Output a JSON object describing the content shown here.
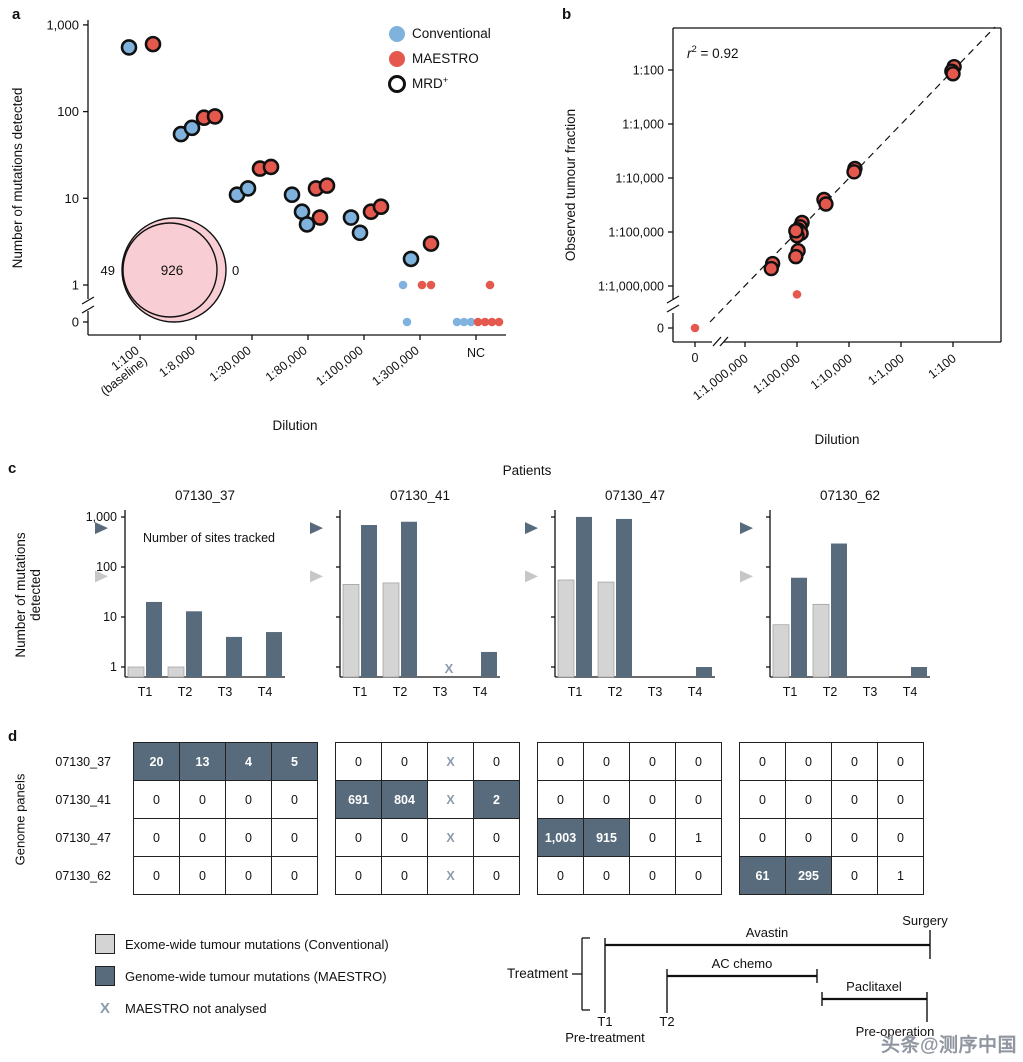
{
  "panel_labels": {
    "a": "a",
    "b": "b",
    "c": "c",
    "d": "d"
  },
  "watermark": "头条@测序中国",
  "colors": {
    "conventional": "#7fb2dd",
    "maestro": "#e4584e",
    "ring": "#111111",
    "bar_light": "#d4d4d4",
    "bar_dark": "#576b7c",
    "venn_fill": "#f8cdd3",
    "x_mark": "#8b9bab",
    "axis": "#111111"
  },
  "chart_data": [
    {
      "id": "a",
      "type": "scatter",
      "xlabel": "Dilution",
      "ylabel": "Number of mutations detected",
      "yscale": "log-with-zero-break",
      "ylim": [
        0,
        1000
      ],
      "yticks": [
        1000,
        100,
        10,
        1,
        0
      ],
      "ytick_labels": [
        "1,000",
        "100",
        "10",
        "1",
        "0"
      ],
      "categories": [
        {
          "lines": [
            "1:100",
            "(baseline)"
          ]
        },
        {
          "lines": [
            "1:8,000"
          ]
        },
        {
          "lines": [
            "1:30,000"
          ]
        },
        {
          "lines": [
            "1:80,000"
          ]
        },
        {
          "lines": [
            "1:100,000"
          ]
        },
        {
          "lines": [
            "1:300,000"
          ]
        },
        {
          "lines": [
            "NC"
          ],
          "horizontal": true
        }
      ],
      "legend": [
        {
          "key": "conventional",
          "label": "Conventional"
        },
        {
          "key": "maestro",
          "label": "MAESTRO"
        },
        {
          "key": "mrd",
          "label": "MRD",
          "sup": "+"
        }
      ],
      "venn": {
        "left_value": "49",
        "overlap_value": "926",
        "right_value": "0"
      },
      "points": [
        {
          "cat": 0,
          "series": "conventional",
          "value": 550,
          "mrd": true,
          "dx": -11
        },
        {
          "cat": 0,
          "series": "maestro",
          "value": 600,
          "mrd": true,
          "dx": 13
        },
        {
          "cat": 1,
          "series": "conventional",
          "value": 55,
          "mrd": true,
          "dx": -15
        },
        {
          "cat": 1,
          "series": "conventional",
          "value": 65,
          "mrd": true,
          "dx": -4
        },
        {
          "cat": 1,
          "series": "maestro",
          "value": 85,
          "mrd": true,
          "dx": 8
        },
        {
          "cat": 1,
          "series": "maestro",
          "value": 88,
          "mrd": true,
          "dx": 19
        },
        {
          "cat": 2,
          "series": "conventional",
          "value": 11,
          "mrd": true,
          "dx": -15
        },
        {
          "cat": 2,
          "series": "conventional",
          "value": 13,
          "mrd": true,
          "dx": -4
        },
        {
          "cat": 2,
          "series": "maestro",
          "value": 22,
          "mrd": true,
          "dx": 8
        },
        {
          "cat": 2,
          "series": "maestro",
          "value": 23,
          "mrd": true,
          "dx": 19
        },
        {
          "cat": 3,
          "series": "conventional",
          "value": 11,
          "mrd": true,
          "dx": -16
        },
        {
          "cat": 3,
          "series": "conventional",
          "value": 7,
          "mrd": true,
          "dx": -6
        },
        {
          "cat": 3,
          "series": "conventional",
          "value": 5,
          "mrd": true,
          "dx": -1
        },
        {
          "cat": 3,
          "series": "maestro",
          "value": 13,
          "mrd": true,
          "dx": 8
        },
        {
          "cat": 3,
          "series": "maestro",
          "value": 14,
          "mrd": true,
          "dx": 19
        },
        {
          "cat": 3,
          "series": "maestro",
          "value": 6,
          "mrd": true,
          "dx": 12
        },
        {
          "cat": 4,
          "series": "conventional",
          "value": 6,
          "mrd": true,
          "dx": -13
        },
        {
          "cat": 4,
          "series": "conventional",
          "value": 4,
          "mrd": true,
          "dx": -4
        },
        {
          "cat": 4,
          "series": "maestro",
          "value": 7,
          "mrd": true,
          "dx": 7
        },
        {
          "cat": 4,
          "series": "maestro",
          "value": 8,
          "mrd": true,
          "dx": 17
        },
        {
          "cat": 5,
          "series": "conventional",
          "value": 2,
          "mrd": true,
          "dx": -9
        },
        {
          "cat": 5,
          "series": "maestro",
          "value": 3,
          "mrd": true,
          "dx": 11
        },
        {
          "cat": 5,
          "series": "conventional",
          "value": 1,
          "mrd": false,
          "dx": -17
        },
        {
          "cat": 5,
          "series": "maestro",
          "value": 1,
          "mrd": false,
          "dx": 2
        },
        {
          "cat": 5,
          "series": "maestro",
          "value": 1,
          "mrd": false,
          "dx": 11
        },
        {
          "cat": 5,
          "series": "conventional",
          "value": 0,
          "mrd": false,
          "dx": -13
        },
        {
          "cat": 6,
          "series": "conventional",
          "value": 0,
          "mrd": false,
          "dx": -19
        },
        {
          "cat": 6,
          "series": "conventional",
          "value": 0,
          "mrd": false,
          "dx": -12
        },
        {
          "cat": 6,
          "series": "conventional",
          "value": 0,
          "mrd": false,
          "dx": -5
        },
        {
          "cat": 6,
          "series": "maestro",
          "value": 0,
          "mrd": false,
          "dx": 2
        },
        {
          "cat": 6,
          "series": "maestro",
          "value": 0,
          "mrd": false,
          "dx": 9
        },
        {
          "cat": 6,
          "series": "maestro",
          "value": 0,
          "mrd": false,
          "dx": 16
        },
        {
          "cat": 6,
          "series": "maestro",
          "value": 0,
          "mrd": false,
          "dx": 23
        },
        {
          "cat": 6,
          "series": "maestro",
          "value": 1,
          "mrd": false,
          "dx": 14
        }
      ]
    },
    {
      "id": "b",
      "type": "scatter",
      "xlabel": "Dilution",
      "ylabel": "Observed tumour fraction",
      "xscale": "log-with-zero-break",
      "yscale": "log-with-zero-break",
      "annotation": {
        "italic": "r",
        "sup": "2",
        "rest": " = 0.92"
      },
      "xtick_labels": [
        "0",
        "1:1,000,000",
        "1:100,000",
        "1:10,000",
        "1:1,000",
        "1:100"
      ],
      "ytick_labels": [
        "1:100",
        "1:1,000",
        "1:10,000",
        "1:100,000",
        "1:1,000,000",
        "0"
      ],
      "identity_line": true,
      "points": [
        {
          "x": 0.0105,
          "y": 0.0115,
          "mrd": true
        },
        {
          "x": 0.0095,
          "y": 0.0095,
          "mrd": true
        },
        {
          "x": 0.01,
          "y": 0.0085,
          "mrd": true
        },
        {
          "x": 0.00013,
          "y": 0.00015,
          "mrd": true
        },
        {
          "x": 0.000125,
          "y": 0.00013,
          "mrd": true
        },
        {
          "x": 3.3e-05,
          "y": 4e-05,
          "mrd": true
        },
        {
          "x": 3.6e-05,
          "y": 3.3e-05,
          "mrd": true
        },
        {
          "x": 1.25e-05,
          "y": 1.5e-05,
          "mrd": true
        },
        {
          "x": 1.15e-05,
          "y": 1.25e-05,
          "mrd": true
        },
        {
          "x": 1.05e-05,
          "y": 1.1e-05,
          "mrd": true
        },
        {
          "x": 1.2e-05,
          "y": 9.5e-06,
          "mrd": true
        },
        {
          "x": 1e-05,
          "y": 8.5e-06,
          "mrd": true
        },
        {
          "x": 9.5e-06,
          "y": 1.05e-05,
          "mrd": true
        },
        {
          "x": 1.05e-05,
          "y": 4.5e-06,
          "mrd": true
        },
        {
          "x": 9.5e-06,
          "y": 3.5e-06,
          "mrd": true
        },
        {
          "x": 3.4e-06,
          "y": 2.6e-06,
          "mrd": true
        },
        {
          "x": 3.2e-06,
          "y": 2.1e-06,
          "mrd": true
        },
        {
          "x": 1e-05,
          "y": 7e-07,
          "mrd": false
        },
        {
          "x": 0,
          "y": 0,
          "mrd": false
        }
      ]
    },
    {
      "id": "c",
      "type": "bar",
      "title": "Patients",
      "ylabel_lines": [
        "Number of mutations",
        "detected"
      ],
      "yscale": "log",
      "ylim": [
        1,
        1000
      ],
      "yticks": [
        "1,000",
        "100",
        "10",
        "1"
      ],
      "sites_note": "Number of sites tracked",
      "x_symbol": "X",
      "timepoints": [
        "T1",
        "T2",
        "T3",
        "T4"
      ],
      "sites_tracked": {
        "genome": 600,
        "exome": 65
      },
      "patients": [
        {
          "id": "07130_37",
          "conventional": [
            1,
            1,
            0,
            0
          ],
          "maestro": [
            20,
            13,
            4,
            5
          ],
          "not_analysed": []
        },
        {
          "id": "07130_41",
          "conventional": [
            45,
            48,
            0,
            0
          ],
          "maestro": [
            691,
            804,
            null,
            2
          ],
          "not_analysed": [
            2
          ]
        },
        {
          "id": "07130_47",
          "conventional": [
            55,
            50,
            0,
            0
          ],
          "maestro": [
            1003,
            915,
            0,
            1
          ],
          "not_analysed": []
        },
        {
          "id": "07130_62",
          "conventional": [
            7,
            18,
            0,
            0
          ],
          "maestro": [
            61,
            295,
            0,
            1
          ],
          "not_analysed": []
        }
      ]
    },
    {
      "id": "d",
      "type": "table",
      "row_label_header": "Genome panels",
      "rows": [
        "07130_37",
        "07130_41",
        "07130_47",
        "07130_62"
      ],
      "blocks": [
        {
          "cells": [
            [
              "20",
              "13",
              "4",
              "5"
            ],
            [
              "0",
              "0",
              "0",
              "0"
            ],
            [
              "0",
              "0",
              "0",
              "0"
            ],
            [
              "0",
              "0",
              "0",
              "0"
            ]
          ],
          "dark": [
            [
              0,
              0
            ],
            [
              0,
              1
            ],
            [
              0,
              2
            ],
            [
              0,
              3
            ]
          ]
        },
        {
          "cells": [
            [
              "0",
              "0",
              "X",
              "0"
            ],
            [
              "691",
              "804",
              "X",
              "2"
            ],
            [
              "0",
              "0",
              "X",
              "0"
            ],
            [
              "0",
              "0",
              "X",
              "0"
            ]
          ],
          "dark": [
            [
              1,
              0
            ],
            [
              1,
              1
            ],
            [
              1,
              3
            ]
          ]
        },
        {
          "cells": [
            [
              "0",
              "0",
              "0",
              "0"
            ],
            [
              "0",
              "0",
              "0",
              "0"
            ],
            [
              "1,003",
              "915",
              "0",
              "1"
            ],
            [
              "0",
              "0",
              "0",
              "0"
            ]
          ],
          "dark": [
            [
              2,
              0
            ],
            [
              2,
              1
            ]
          ]
        },
        {
          "cells": [
            [
              "0",
              "0",
              "0",
              "0"
            ],
            [
              "0",
              "0",
              "0",
              "0"
            ],
            [
              "0",
              "0",
              "0",
              "0"
            ],
            [
              "61",
              "295",
              "0",
              "1"
            ]
          ],
          "dark": [
            [
              3,
              0
            ],
            [
              3,
              1
            ]
          ]
        }
      ]
    }
  ],
  "panel_d_legend": [
    {
      "swatch": "light",
      "label": "Exome-wide tumour mutations (Conventional)"
    },
    {
      "swatch": "dark",
      "label": "Genome-wide tumour mutations (MAESTRO)"
    },
    {
      "swatch": "x",
      "symbol": "X",
      "label": "MAESTRO not analysed"
    }
  ],
  "treatment_timeline": {
    "label": "Treatment",
    "bars": [
      {
        "name": "Avastin"
      },
      {
        "name": "AC chemo"
      },
      {
        "name": "Paclitaxel"
      }
    ],
    "milestones": {
      "surgery": "Surgery",
      "t1": "T1",
      "t1_sub": "Pre-treatment",
      "t2": "T2",
      "pre_op": "Pre-operation"
    }
  }
}
